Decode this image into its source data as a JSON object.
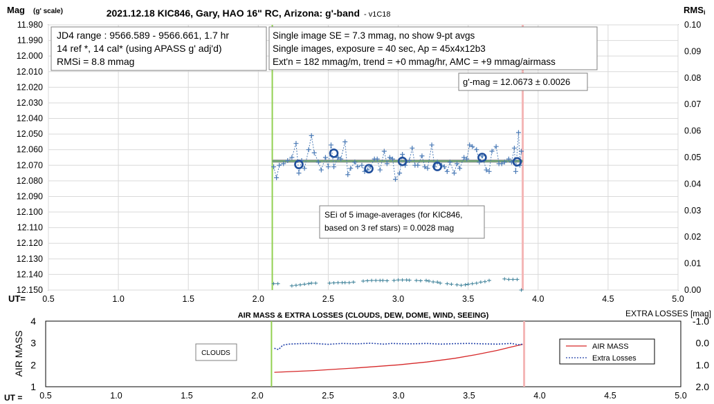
{
  "chart_data": [
    {
      "type": "scatter",
      "title": "2021.12.18 KIC846, Gary, HAO 16\" RC, Arizona: g'-band",
      "title_suffix": "- v1C18",
      "ylabel": "Mag",
      "ylabel_suffix": "(g' scale)",
      "y2label": "RMS",
      "y2label_suffix": "i",
      "xlabel": "UT=",
      "xlim": [
        0.5,
        5.0
      ],
      "ylim": [
        11.98,
        12.15
      ],
      "y_inverted": true,
      "y2lim": [
        0.0,
        0.1
      ],
      "x_ticks": [
        "0.5",
        "1.0",
        "1.5",
        "2.0",
        "2.5",
        "3.0",
        "3.5",
        "4.0",
        "4.5",
        "5.0"
      ],
      "y_ticks": [
        "11.980",
        "11.990",
        "12.000",
        "12.010",
        "12.020",
        "12.030",
        "12.040",
        "12.050",
        "12.060",
        "12.070",
        "12.080",
        "12.090",
        "12.100",
        "12.110",
        "12.120",
        "12.130",
        "12.140",
        "12.150"
      ],
      "y2_ticks": [
        "0.00",
        "0.01",
        "0.02",
        "0.03",
        "0.04",
        "0.05",
        "0.06",
        "0.07",
        "0.08",
        "0.09",
        "0.10"
      ],
      "grid": true,
      "start_line_x": 2.1,
      "end_line_x": 3.89,
      "colors": {
        "start_line": "#92d050",
        "end_line": "#f4b6b6",
        "single": "#4a7ab6",
        "avg": "#1f4e9b",
        "model": "#5a9a60",
        "rms": "#3a7f97"
      },
      "annotations": {
        "box1": [
          "JD4 range : 9566.589 - 9566.661,  1.7  hr",
          "14 ref *, 14 cal* (using APASS g' adj'd)",
          "RMSi = 8.8 mmag"
        ],
        "box2": [
          "Single image SE = 7.3 mmag, no show  9-pt avgs",
          "Single images, exposure = 40 sec, Ap = 45x4x12b3",
          "Ext'n = 182 mmag/m, trend = +0 mmag/hr, AMC = +9 mmag/airmass"
        ],
        "box3": "g'-mag = 12.0673 ± 0.0026",
        "box4": [
          "SEi of 5 image-averages (for KIC846,",
          "based on 3 ref stars) = 0.0028 mag"
        ]
      },
      "model_line": {
        "x": [
          2.1,
          3.89
        ],
        "y": [
          12.0673,
          12.0673
        ]
      },
      "series": [
        {
          "kind": "single",
          "x": [
            2.11,
            2.13,
            2.15,
            2.18,
            2.21,
            2.24,
            2.27,
            2.29,
            2.31,
            2.33,
            2.36,
            2.38,
            2.4,
            2.43,
            2.45,
            2.48,
            2.5,
            2.52,
            2.54,
            2.57,
            2.59,
            2.62,
            2.64,
            2.66,
            2.69,
            2.71,
            2.74,
            2.76,
            2.78,
            2.8,
            2.83,
            2.85,
            2.87,
            2.9,
            2.92,
            2.94,
            2.96,
            2.98,
            3.01,
            3.03,
            3.05,
            3.08,
            3.1,
            3.12,
            3.14,
            3.17,
            3.19,
            3.21,
            3.24,
            3.26,
            3.28,
            3.31,
            3.33,
            3.35,
            3.37,
            3.4,
            3.42,
            3.44,
            3.47,
            3.49,
            3.51,
            3.53,
            3.56,
            3.58,
            3.6,
            3.63,
            3.65,
            3.67,
            3.7,
            3.72,
            3.74,
            3.76,
            3.79,
            3.81,
            3.83,
            3.84,
            3.86,
            3.87,
            3.88
          ],
          "y": [
            12.071,
            12.078,
            12.07,
            12.069,
            12.067,
            12.065,
            12.056,
            12.075,
            12.067,
            12.072,
            12.06,
            12.051,
            12.062,
            12.068,
            12.073,
            12.065,
            12.071,
            12.057,
            12.071,
            12.065,
            12.066,
            12.055,
            12.076,
            12.072,
            12.068,
            12.071,
            12.07,
            12.074,
            12.073,
            12.071,
            12.066,
            12.066,
            12.073,
            12.061,
            12.069,
            12.065,
            12.066,
            12.079,
            12.075,
            12.063,
            12.07,
            12.067,
            12.059,
            12.07,
            12.07,
            12.064,
            12.071,
            12.072,
            12.057,
            12.071,
            12.068,
            12.07,
            12.071,
            12.074,
            12.068,
            12.075,
            12.069,
            12.072,
            12.065,
            12.066,
            12.057,
            12.058,
            12.06,
            12.068,
            12.064,
            12.073,
            12.074,
            12.061,
            12.058,
            12.069,
            12.069,
            12.068,
            12.066,
            12.068,
            12.059,
            12.074,
            12.049,
            12.07,
            12.061
          ]
        },
        {
          "kind": "average",
          "x": [
            2.29,
            2.54,
            2.79,
            3.03,
            3.28,
            3.6,
            3.85
          ],
          "y": [
            12.0695,
            12.0623,
            12.0722,
            12.0675,
            12.0708,
            12.065,
            12.0678
          ]
        },
        {
          "kind": "rms",
          "axis": "y2",
          "x": [
            2.11,
            2.14,
            2.24,
            2.27,
            2.3,
            2.33,
            2.36,
            2.38,
            2.41,
            2.51,
            2.54,
            2.57,
            2.6,
            2.62,
            2.65,
            2.68,
            2.75,
            2.78,
            2.81,
            2.84,
            2.87,
            2.89,
            2.92,
            2.97,
            3.0,
            3.03,
            3.06,
            3.08,
            3.13,
            3.16,
            3.2,
            3.22,
            3.25,
            3.28,
            3.3,
            3.35,
            3.38,
            3.42,
            3.45,
            3.48,
            3.5,
            3.53,
            3.56,
            3.59,
            3.62,
            3.65,
            3.76,
            3.79,
            3.82,
            3.85,
            3.88
          ],
          "y": [
            0.0024,
            0.0024,
            0.0016,
            0.0018,
            0.002,
            0.0022,
            0.0024,
            0.0026,
            0.0026,
            0.0026,
            0.0027,
            0.0028,
            0.0028,
            0.0028,
            0.0028,
            0.003,
            0.0034,
            0.0035,
            0.0036,
            0.0036,
            0.0036,
            0.0036,
            0.0035,
            0.0036,
            0.0038,
            0.0038,
            0.0038,
            0.0037,
            0.0036,
            0.0035,
            0.0036,
            0.0034,
            0.0031,
            0.003,
            0.0026,
            0.0024,
            0.0022,
            0.002,
            0.0018,
            0.002,
            0.0022,
            0.0024,
            0.0026,
            0.003,
            0.0032,
            0.0036,
            0.0042,
            0.004,
            0.004,
            0.004,
            0.0
          ]
        }
      ]
    },
    {
      "type": "line",
      "title": "AIR MASS & EXTRA LOSSES (CLOUDS, DEW, DOME, WIND, SEEING)",
      "ylabel": "AIR MASS",
      "y2label": "EXTRA LOSSES [mag]",
      "xlabel": "UT =",
      "xlim": [
        0.5,
        5.0
      ],
      "ylim": [
        1,
        4
      ],
      "y2lim": [
        2.0,
        -1.0
      ],
      "x_ticks": [
        "0.5",
        "1.0",
        "1.5",
        "2.0",
        "2.5",
        "3.0",
        "3.5",
        "4.0",
        "4.5",
        "5.0"
      ],
      "y_ticks": [
        "1",
        "2",
        "3",
        "4"
      ],
      "y2_ticks": [
        "2.0",
        "1.0",
        "0.0",
        "-1.0"
      ],
      "start_line_x": 2.1,
      "end_line_x": 3.89,
      "clouds_label": "CLOUDS",
      "legend": [
        "AIR MASS",
        "Extra Losses"
      ],
      "legend_position": "right",
      "colors": {
        "airmass": "#d62728",
        "losses": "#1f3fa8"
      },
      "series": [
        {
          "name": "AIR MASS",
          "x": [
            2.12,
            2.4,
            2.7,
            3.0,
            3.2,
            3.4,
            3.55,
            3.7,
            3.8,
            3.88
          ],
          "y": [
            1.66,
            1.74,
            1.86,
            2.0,
            2.13,
            2.3,
            2.47,
            2.66,
            2.82,
            2.94
          ]
        },
        {
          "name": "Extra Losses",
          "x": [
            2.12,
            2.15,
            2.18,
            2.22,
            2.3,
            2.4,
            2.5,
            2.6,
            2.7,
            2.8,
            2.9,
            2.95,
            3.0,
            3.1,
            3.2,
            3.3,
            3.4,
            3.5,
            3.6,
            3.7,
            3.8,
            3.85,
            3.88
          ],
          "y": [
            0.24,
            0.3,
            0.1,
            0.05,
            0.03,
            0.02,
            0.06,
            0.02,
            0.04,
            0.01,
            0.05,
            0.02,
            0.03,
            0.04,
            0.02,
            0.05,
            0.03,
            0.02,
            0.04,
            0.05,
            0.02,
            0.08,
            0.05
          ]
        }
      ]
    }
  ]
}
